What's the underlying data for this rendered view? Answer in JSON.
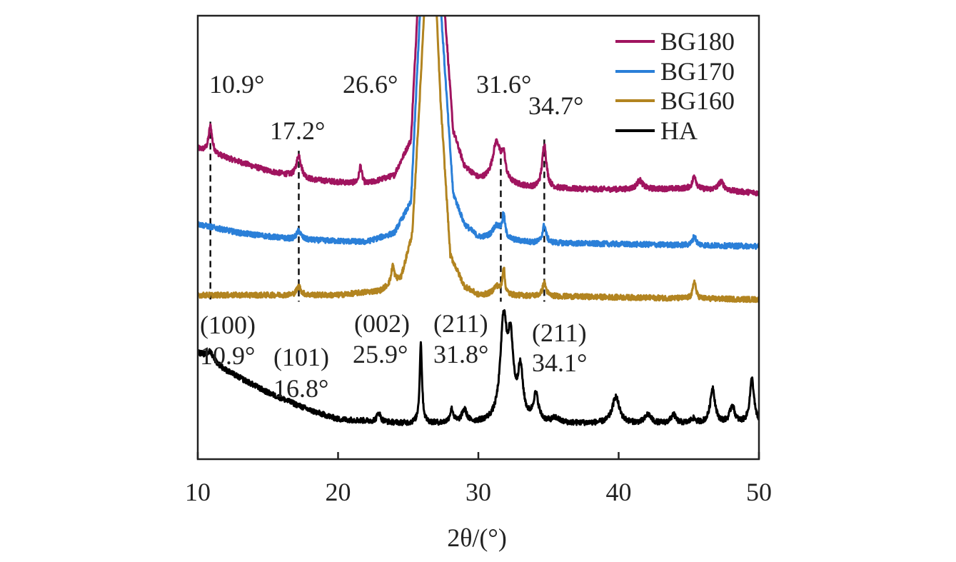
{
  "chart_data": {
    "type": "line",
    "title": "",
    "xlabel": "2θ/(°)",
    "ylabel": "",
    "xlim": [
      10,
      50
    ],
    "ylim": [
      0,
      1
    ],
    "grid": false,
    "legend_position": "top-right",
    "xticks": [
      "10",
      "20",
      "30",
      "40",
      "50"
    ],
    "series": [
      {
        "name": "BG180",
        "color": "#a0145f",
        "baseline": 0.6,
        "bg": [
          [
            10,
            0.1
          ],
          [
            12,
            0.08
          ],
          [
            15,
            0.05
          ],
          [
            18,
            0.03
          ],
          [
            22,
            0.02
          ],
          [
            24,
            0.04
          ],
          [
            25.2,
            0.12
          ],
          [
            25.8,
            0.5
          ],
          [
            26.6,
            0.95
          ],
          [
            27.4,
            0.5
          ],
          [
            28.2,
            0.14
          ],
          [
            29,
            0.06
          ],
          [
            30,
            0.03
          ],
          [
            34,
            0.01
          ],
          [
            40,
            0.008
          ],
          [
            45,
            0.01
          ],
          [
            50,
            0.0
          ]
        ],
        "peaks": [
          [
            10.9,
            0.06,
            0.15
          ],
          [
            17.2,
            0.05,
            0.2
          ],
          [
            21.6,
            0.04,
            0.12
          ],
          [
            31.3,
            0.09,
            0.35
          ],
          [
            31.8,
            0.05,
            0.15
          ],
          [
            34.7,
            0.1,
            0.18
          ],
          [
            41.5,
            0.02,
            0.25
          ],
          [
            45.4,
            0.03,
            0.15
          ],
          [
            47.3,
            0.02,
            0.25
          ]
        ]
      },
      {
        "name": "BG170",
        "color": "#2a7fd8",
        "baseline": 0.48,
        "bg": [
          [
            10,
            0.05
          ],
          [
            13,
            0.03
          ],
          [
            17,
            0.015
          ],
          [
            22,
            0.01
          ],
          [
            24,
            0.03
          ],
          [
            25.2,
            0.1
          ],
          [
            25.8,
            0.5
          ],
          [
            26.6,
            0.95
          ],
          [
            27.4,
            0.5
          ],
          [
            28.2,
            0.12
          ],
          [
            29,
            0.05
          ],
          [
            30,
            0.02
          ],
          [
            34,
            0.008
          ],
          [
            50,
            0.0
          ]
        ],
        "peaks": [
          [
            17.2,
            0.02,
            0.2
          ],
          [
            31.3,
            0.03,
            0.35
          ],
          [
            31.8,
            0.05,
            0.12
          ],
          [
            34.7,
            0.04,
            0.15
          ],
          [
            45.4,
            0.02,
            0.15
          ]
        ]
      },
      {
        "name": "BG160",
        "color": "#b28420",
        "baseline": 0.36,
        "bg": [
          [
            10,
            0.01
          ],
          [
            20,
            0.01
          ],
          [
            23,
            0.02
          ],
          [
            24.5,
            0.05
          ],
          [
            25.3,
            0.15
          ],
          [
            25.9,
            0.5
          ],
          [
            26.6,
            0.95
          ],
          [
            27.3,
            0.45
          ],
          [
            28,
            0.1
          ],
          [
            29,
            0.03
          ],
          [
            30,
            0.01
          ],
          [
            50,
            0.0
          ]
        ],
        "peaks": [
          [
            17.2,
            0.02,
            0.18
          ],
          [
            23.9,
            0.04,
            0.12
          ],
          [
            31.3,
            0.02,
            0.3
          ],
          [
            31.8,
            0.06,
            0.1
          ],
          [
            34.7,
            0.03,
            0.15
          ],
          [
            45.4,
            0.04,
            0.12
          ]
        ]
      },
      {
        "name": "HA",
        "color": "#000000",
        "baseline": 0.06,
        "bg": [
          [
            10,
            0.18
          ],
          [
            12,
            0.14
          ],
          [
            15,
            0.09
          ],
          [
            18,
            0.05
          ],
          [
            20,
            0.03
          ],
          [
            25,
            0.02
          ],
          [
            30,
            0.02
          ],
          [
            40,
            0.02
          ],
          [
            50,
            0.02
          ]
        ],
        "peaks": [
          [
            10.9,
            0.02,
            0.3
          ],
          [
            22.9,
            0.02,
            0.15
          ],
          [
            25.9,
            0.18,
            0.1
          ],
          [
            28.1,
            0.03,
            0.15
          ],
          [
            29.0,
            0.03,
            0.2
          ],
          [
            31.8,
            0.22,
            0.28
          ],
          [
            32.3,
            0.16,
            0.25
          ],
          [
            33.0,
            0.11,
            0.22
          ],
          [
            34.1,
            0.06,
            0.22
          ],
          [
            35.5,
            0.01,
            0.3
          ],
          [
            39.8,
            0.06,
            0.3
          ],
          [
            42.1,
            0.02,
            0.25
          ],
          [
            43.9,
            0.02,
            0.2
          ],
          [
            45.3,
            0.01,
            0.2
          ],
          [
            46.7,
            0.08,
            0.2
          ],
          [
            48.1,
            0.04,
            0.2
          ],
          [
            49.5,
            0.1,
            0.18
          ]
        ]
      }
    ],
    "reference_lines": [
      10.9,
      17.2,
      31.6,
      34.7
    ],
    "annotations": [
      {
        "text": "10.9°",
        "x": 10.9,
        "series": "BG180"
      },
      {
        "text": "17.2°",
        "x": 17.2,
        "series": "BG180"
      },
      {
        "text": "26.6°",
        "x": 26.6,
        "series": "BG180"
      },
      {
        "text": "31.6°",
        "x": 31.6,
        "series": "BG180"
      },
      {
        "text": "34.7°",
        "x": 34.7,
        "series": "BG180"
      },
      {
        "text": "(100)",
        "x": 10.9,
        "series": "HA"
      },
      {
        "text": "10.9°",
        "x": 10.9,
        "series": "HA"
      },
      {
        "text": "(101)",
        "x": 16.8,
        "series": "HA"
      },
      {
        "text": "16.8°",
        "x": 16.8,
        "series": "HA"
      },
      {
        "text": "(002)",
        "x": 25.9,
        "series": "HA"
      },
      {
        "text": "25.9°",
        "x": 25.9,
        "series": "HA"
      },
      {
        "text": "(211)",
        "x": 31.8,
        "series": "HA"
      },
      {
        "text": "31.8°",
        "x": 31.8,
        "series": "HA"
      },
      {
        "text": "(211)",
        "x": 34.1,
        "series": "HA"
      },
      {
        "text": "34.1°",
        "x": 34.1,
        "series": "HA"
      }
    ]
  }
}
